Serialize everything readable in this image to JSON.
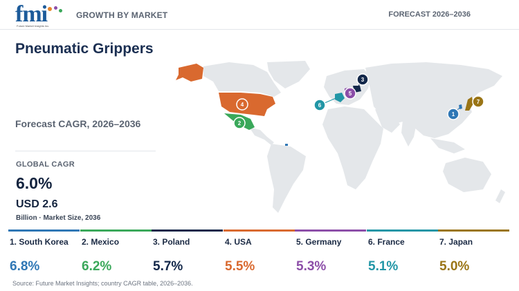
{
  "header": {
    "logo_text": "fmi",
    "logo_subtext": "Future Market Insights Inc.",
    "left_label": "GROWTH BY MARKET",
    "right_label": "FORECAST 2026–2036"
  },
  "title": "Pneumatic Grippers",
  "forecast_label": "Forecast CAGR, 2026–2036",
  "global": {
    "label": "GLOBAL CAGR",
    "value": "6.0%",
    "market_size": "USD 2.6",
    "market_size_note": "Billion · Market Size, 2036"
  },
  "countries": [
    {
      "rank": "1",
      "label": "1. South Korea",
      "cagr": "6.8%",
      "color": "#2f77b5"
    },
    {
      "rank": "2",
      "label": "2. Mexico",
      "cagr": "6.2%",
      "color": "#3aa85a"
    },
    {
      "rank": "3",
      "label": "3. Poland",
      "cagr": "5.7%",
      "color": "#13284a"
    },
    {
      "rank": "4",
      "label": "4. USA",
      "cagr": "5.5%",
      "color": "#d9692f"
    },
    {
      "rank": "5",
      "label": "5. Germany",
      "cagr": "5.3%",
      "color": "#8c4ea8"
    },
    {
      "rank": "6",
      "label": "6. France",
      "cagr": "5.1%",
      "color": "#2196a6"
    },
    {
      "rank": "7",
      "label": "7. Japan",
      "cagr": "5.0%",
      "color": "#9a7516"
    }
  ],
  "source": "Source: Future Market Insights; country CAGR table, 2026–2036.",
  "colors": {
    "map_land": "#e4e7ea",
    "heading": "#1b2f52",
    "muted": "#5b6472"
  }
}
